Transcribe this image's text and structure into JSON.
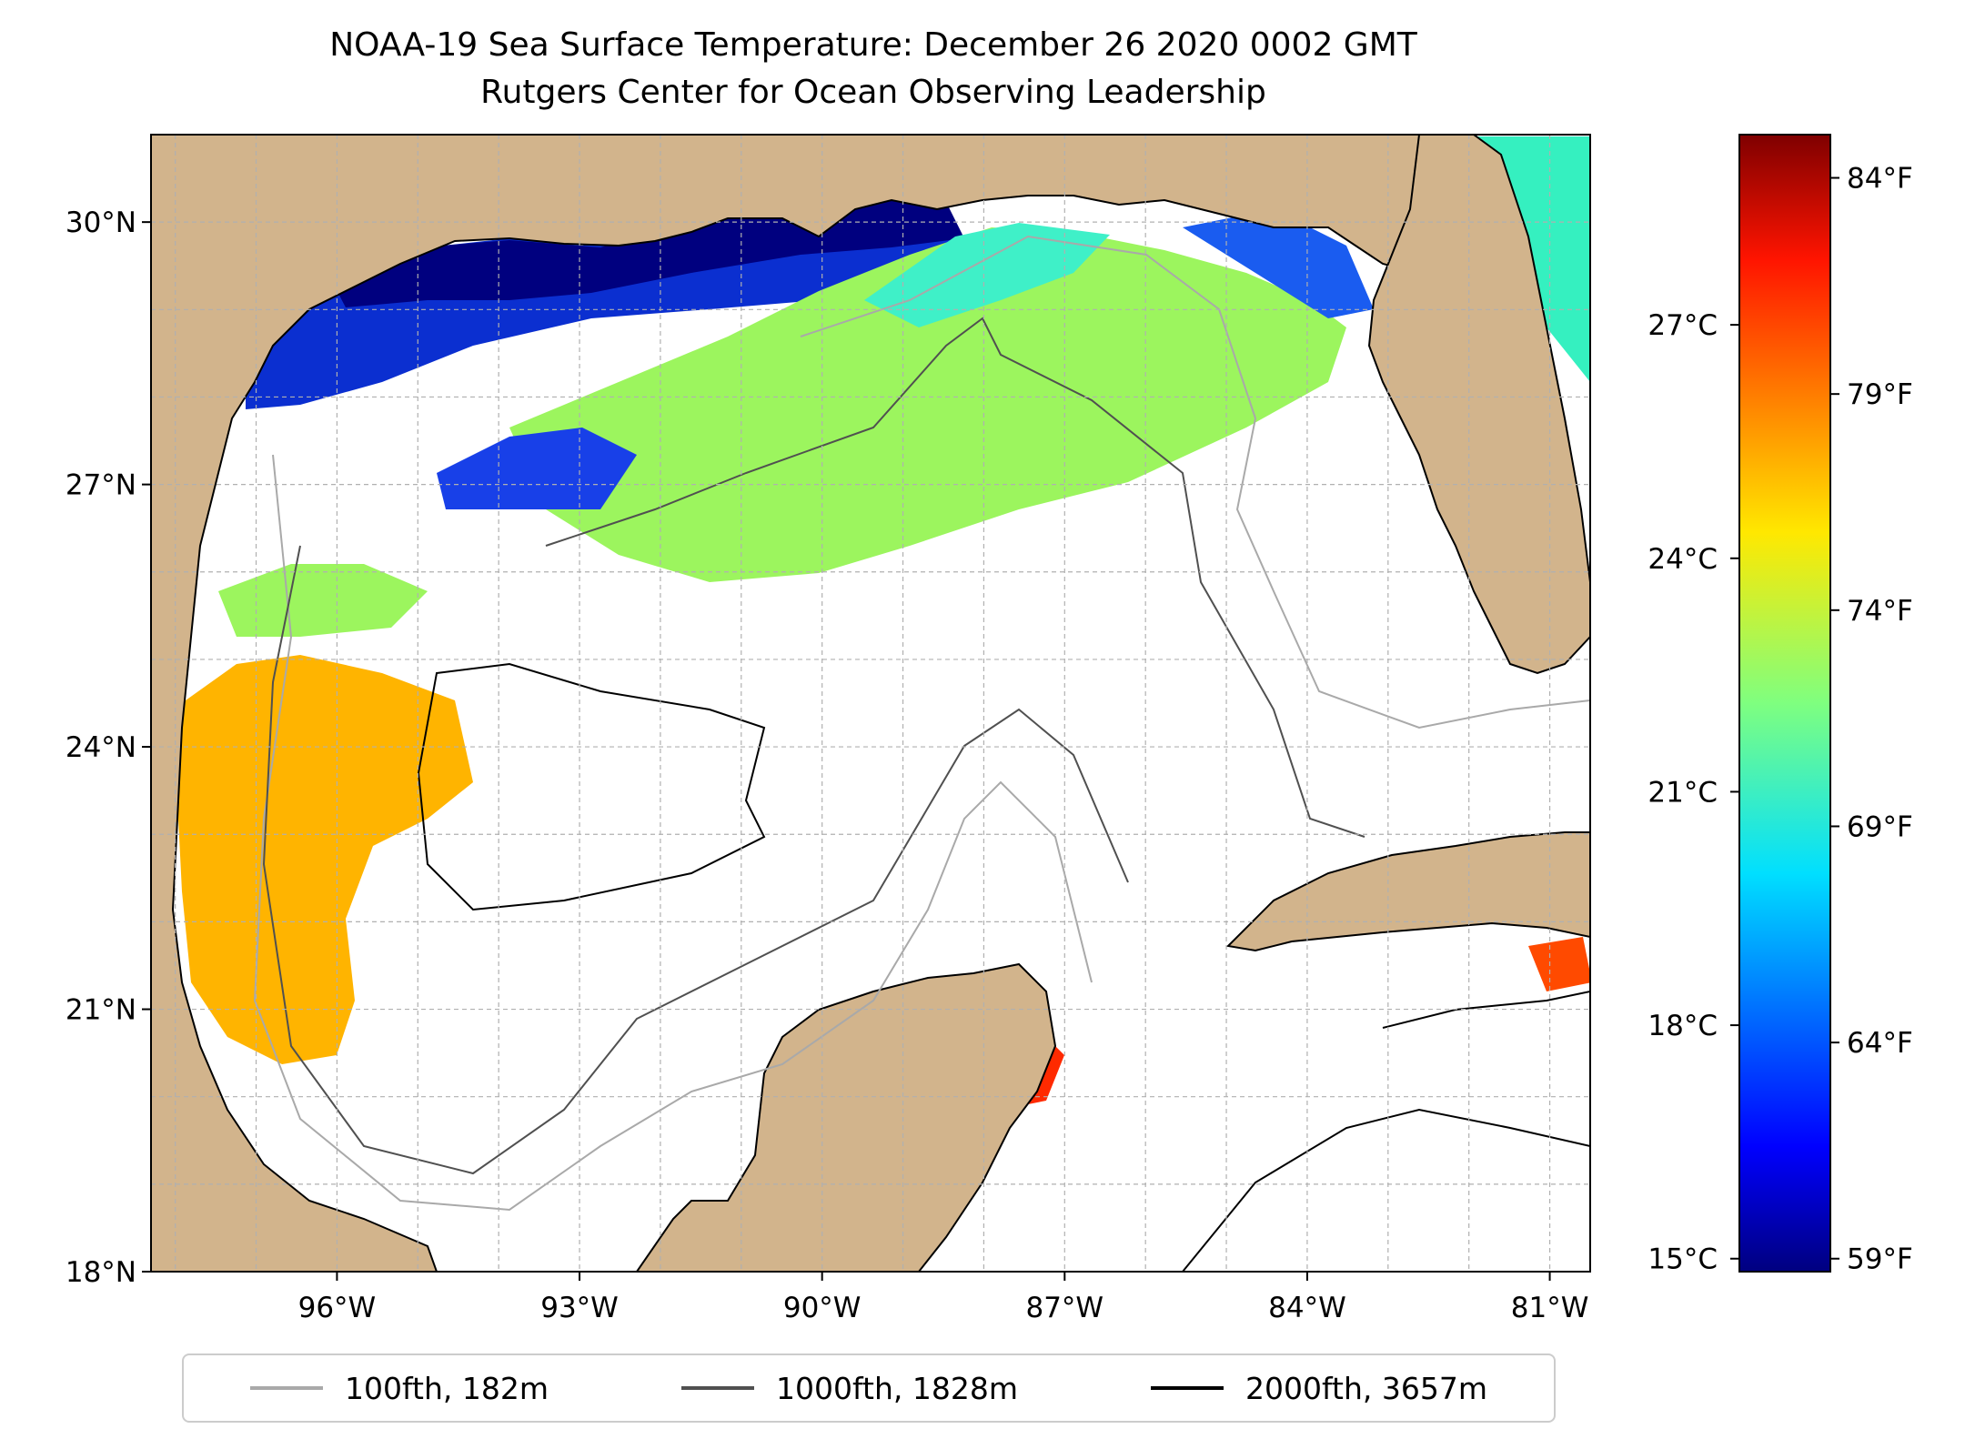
{
  "title": "NOAA-19 Sea Surface Temperature: December 26 2020 0002 GMT",
  "subtitle": "Rutgers Center for Ocean Observing Leadership",
  "map": {
    "lon_range": [
      -98.3,
      -80.5
    ],
    "lat_range": [
      18,
      31
    ],
    "lat_ticks": [
      {
        "value": 30,
        "label": "30°N"
      },
      {
        "value": 27,
        "label": "27°N"
      },
      {
        "value": 24,
        "label": "24°N"
      },
      {
        "value": 21,
        "label": "21°N"
      },
      {
        "value": 18,
        "label": "18°N"
      }
    ],
    "lon_ticks": [
      {
        "value": -96,
        "label": "96°W"
      },
      {
        "value": -93,
        "label": "93°W"
      },
      {
        "value": -90,
        "label": "90°W"
      },
      {
        "value": -87,
        "label": "87°W"
      },
      {
        "value": -84,
        "label": "84°W"
      },
      {
        "value": -81,
        "label": "81°W"
      }
    ],
    "colors": {
      "land": "#d2b48c",
      "ocean_nodata": "#ffffff",
      "grid": "#b0b0b0"
    }
  },
  "colorbar": {
    "celsius_ticks": [
      {
        "value": 27,
        "label": "27°C"
      },
      {
        "value": 24,
        "label": "24°C"
      },
      {
        "value": 21,
        "label": "21°C"
      },
      {
        "value": 18,
        "label": "18°C"
      },
      {
        "value": 15,
        "label": "15°C"
      }
    ],
    "fahrenheit_ticks": [
      {
        "value": 84,
        "label": "84°F"
      },
      {
        "value": 79,
        "label": "79°F"
      },
      {
        "value": 74,
        "label": "74°F"
      },
      {
        "value": 69,
        "label": "69°F"
      },
      {
        "value": 64,
        "label": "64°F"
      },
      {
        "value": 59,
        "label": "59°F"
      }
    ],
    "range_f": [
      58.7,
      85
    ],
    "colormap": "jet"
  },
  "legend": [
    {
      "label": "100fth, 182m",
      "color": "#a9a9a9"
    },
    {
      "label": "1000fth, 1828m",
      "color": "#505050"
    },
    {
      "label": "2000fth, 3657m",
      "color": "#000000"
    }
  ]
}
